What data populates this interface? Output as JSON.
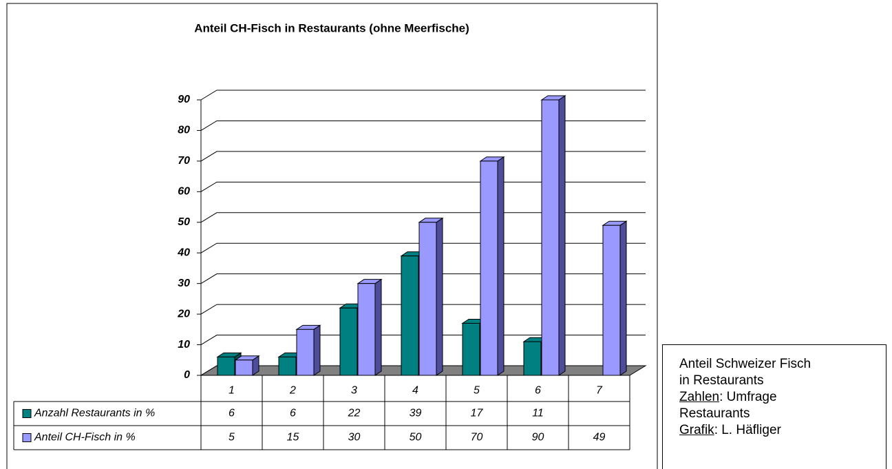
{
  "chart_data": {
    "type": "bar",
    "title": "Anteil CH-Fisch in Restaurants (ohne Meerfische)",
    "categories": [
      "1",
      "2",
      "3",
      "4",
      "5",
      "6",
      "7"
    ],
    "series": [
      {
        "name": "Anzahl Restaurants in %",
        "color": "#008080",
        "side_color": "#004d4d",
        "values": [
          6,
          6,
          22,
          39,
          17,
          11,
          null
        ]
      },
      {
        "name": "Anteil CH-Fisch in %",
        "color": "#9999ff",
        "side_color": "#4d4d99",
        "values": [
          5,
          15,
          30,
          50,
          70,
          90,
          49
        ]
      }
    ],
    "ylim": [
      0,
      90
    ],
    "yticks": [
      0,
      10,
      20,
      30,
      40,
      50,
      60,
      70,
      80,
      90
    ],
    "grid": true
  },
  "note": {
    "line1": "Anteil Schweizer Fisch",
    "line2": "in Restaurants",
    "source_label": "Zahlen",
    "source_text": ": Umfrage",
    "source_text2": "Restaurants",
    "author_label": "Grafik",
    "author_text": ": L. Häfliger"
  }
}
